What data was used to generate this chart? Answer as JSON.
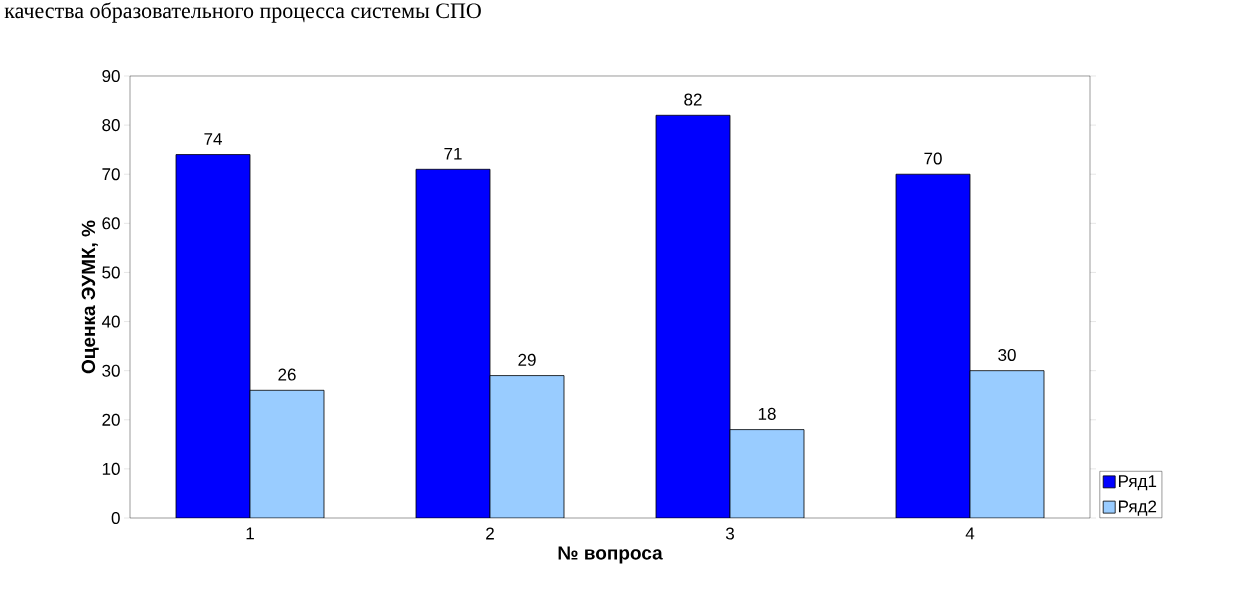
{
  "chart_data": {
    "type": "bar",
    "title": "качества образовательного процесса системы СПО",
    "xlabel": "№ вопроса",
    "ylabel": "Оценка ЭУМК, %",
    "categories": [
      "1",
      "2",
      "3",
      "4"
    ],
    "series": [
      {
        "name": "Ряд1",
        "color": "#0000ff",
        "values": [
          74,
          71,
          82,
          70
        ]
      },
      {
        "name": "Ряд2",
        "color": "#99ccff",
        "values": [
          26,
          29,
          18,
          30
        ]
      }
    ],
    "ylim": [
      0,
      90
    ],
    "yticks": [
      0,
      10,
      20,
      30,
      40,
      50,
      60,
      70,
      80,
      90
    ],
    "grid": false,
    "data_labels": true,
    "legend": "bottom right"
  }
}
